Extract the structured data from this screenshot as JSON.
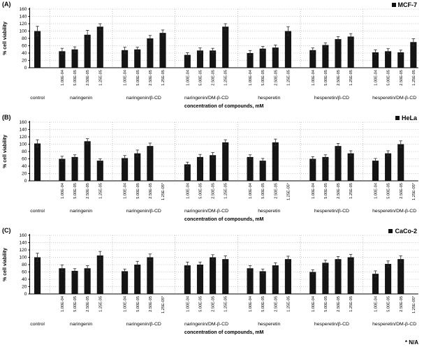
{
  "page": {
    "footnote": "* N/A"
  },
  "chart_data": [
    {
      "type": "bar",
      "panel": "(A)",
      "legend": "MCF-7",
      "title": "",
      "ylabel": "% cell viability",
      "xlabel": "concentration of compounds, mM",
      "ylim": [
        0,
        160
      ],
      "ytick_step": 20,
      "grid": true,
      "legend_position": "top-right",
      "groups": [
        {
          "label": "control",
          "bars": [
            {
              "tick": "",
              "value": 100,
              "error": 13
            }
          ]
        },
        {
          "label": "naringenin",
          "bars": [
            {
              "tick": "1.00E-04",
              "value": 45,
              "error": 8
            },
            {
              "tick": "5.00E-05",
              "value": 50,
              "error": 7
            },
            {
              "tick": "2.50E-05",
              "value": 90,
              "error": 12
            },
            {
              "tick": "1.25E-05",
              "value": 112,
              "error": 8
            }
          ]
        },
        {
          "label": "naringenin/β-CD",
          "bars": [
            {
              "tick": "1.00E-04",
              "value": 48,
              "error": 8
            },
            {
              "tick": "5.00E-05",
              "value": 50,
              "error": 6
            },
            {
              "tick": "2.50E-05",
              "value": 80,
              "error": 8
            },
            {
              "tick": "1.25E-05",
              "value": 95,
              "error": 8
            }
          ]
        },
        {
          "label": "naringenin/DM-β-CD",
          "bars": [
            {
              "tick": "1.00E-04",
              "value": 35,
              "error": 6
            },
            {
              "tick": "5.00E-05",
              "value": 47,
              "error": 7
            },
            {
              "tick": "2.50E-05",
              "value": 47,
              "error": 6
            },
            {
              "tick": "1.25E-05",
              "value": 112,
              "error": 8
            }
          ]
        },
        {
          "label": "hesperetin",
          "bars": [
            {
              "tick": "1.00E-04",
              "value": 40,
              "error": 7
            },
            {
              "tick": "5.00E-05",
              "value": 52,
              "error": 6
            },
            {
              "tick": "2.50E-05",
              "value": 55,
              "error": 7
            },
            {
              "tick": "1.25E-05",
              "value": 100,
              "error": 12
            }
          ]
        },
        {
          "label": "hesperetin/β-CD",
          "bars": [
            {
              "tick": "1.00E-04",
              "value": 48,
              "error": 6
            },
            {
              "tick": "5.00E-05",
              "value": 62,
              "error": 6
            },
            {
              "tick": "2.50E-05",
              "value": 78,
              "error": 7
            },
            {
              "tick": "1.25E-05",
              "value": 85,
              "error": 8
            }
          ]
        },
        {
          "label": "hesperetin/DM-β-CD",
          "bars": [
            {
              "tick": "1.00E-04",
              "value": 42,
              "error": 7
            },
            {
              "tick": "5.00E-05",
              "value": 45,
              "error": 7
            },
            {
              "tick": "2.50E-05",
              "value": 42,
              "error": 6
            },
            {
              "tick": "1.25E-05",
              "value": 70,
              "error": 9
            }
          ]
        }
      ]
    },
    {
      "type": "bar",
      "panel": "(B)",
      "legend": "HeLa",
      "title": "",
      "ylabel": "% cell viability",
      "xlabel": "concentration of compounds, mM",
      "ylim": [
        0,
        160
      ],
      "ytick_step": 20,
      "grid": true,
      "legend_position": "top-right",
      "groups": [
        {
          "label": "control",
          "bars": [
            {
              "tick": "",
              "value": 102,
              "error": 10
            }
          ]
        },
        {
          "label": "naringenin",
          "bars": [
            {
              "tick": "1.00E-04",
              "value": 60,
              "error": 7
            },
            {
              "tick": "5.00E-05",
              "value": 65,
              "error": 6
            },
            {
              "tick": "2.50E-05",
              "value": 108,
              "error": 7
            },
            {
              "tick": "1.25E-05",
              "value": 55,
              "error": 5
            }
          ]
        },
        {
          "label": "naringenin/β-CD",
          "bars": [
            {
              "tick": "1.00E-04",
              "value": 62,
              "error": 7
            },
            {
              "tick": "5.00E-05",
              "value": 75,
              "error": 9
            },
            {
              "tick": "2.50E-05",
              "value": 95,
              "error": 8
            },
            {
              "tick": "1.25E-05*",
              "value": null,
              "error": null
            }
          ]
        },
        {
          "label": "naringenin/DM-β-CD",
          "bars": [
            {
              "tick": "1.00E-04",
              "value": 45,
              "error": 6
            },
            {
              "tick": "5.00E-05",
              "value": 65,
              "error": 7
            },
            {
              "tick": "2.50E-05",
              "value": 70,
              "error": 7
            },
            {
              "tick": "1.25E-05",
              "value": 105,
              "error": 7
            }
          ]
        },
        {
          "label": "hesperetin",
          "bars": [
            {
              "tick": "1.00E-04",
              "value": 65,
              "error": 6
            },
            {
              "tick": "5.00E-05",
              "value": 55,
              "error": 6
            },
            {
              "tick": "2.50E-05",
              "value": 105,
              "error": 9
            },
            {
              "tick": "1.25E-05*",
              "value": null,
              "error": null
            }
          ]
        },
        {
          "label": "hesperetin/β-CD",
          "bars": [
            {
              "tick": "1.00E-04",
              "value": 60,
              "error": 6
            },
            {
              "tick": "5.00E-05",
              "value": 65,
              "error": 6
            },
            {
              "tick": "2.50E-05",
              "value": 95,
              "error": 7
            },
            {
              "tick": "1.25E-05",
              "value": 75,
              "error": 7
            }
          ]
        },
        {
          "label": "hesperetin/DM-β-CD",
          "bars": [
            {
              "tick": "1.00E-04",
              "value": 55,
              "error": 6
            },
            {
              "tick": "5.00E-05",
              "value": 75,
              "error": 7
            },
            {
              "tick": "2.50E-05",
              "value": 100,
              "error": 9
            },
            {
              "tick": "1.25E-05*",
              "value": null,
              "error": null
            }
          ]
        }
      ]
    },
    {
      "type": "bar",
      "panel": "(C)",
      "legend": "CaCo-2",
      "title": "",
      "ylabel": "% cell viability",
      "xlabel": "concentration of compounds, mM",
      "ylim": [
        0,
        160
      ],
      "ytick_step": 20,
      "grid": true,
      "legend_position": "top-right",
      "groups": [
        {
          "label": "control",
          "bars": [
            {
              "tick": "",
              "value": 100,
              "error": 11
            }
          ]
        },
        {
          "label": "naringenin",
          "bars": [
            {
              "tick": "1.00E-04",
              "value": 70,
              "error": 9
            },
            {
              "tick": "5.00E-05",
              "value": 63,
              "error": 6
            },
            {
              "tick": "2.50E-05",
              "value": 70,
              "error": 7
            },
            {
              "tick": "1.25E-05",
              "value": 105,
              "error": 11
            }
          ]
        },
        {
          "label": "naringenin/β-CD",
          "bars": [
            {
              "tick": "1.00E-04",
              "value": 62,
              "error": 6
            },
            {
              "tick": "5.00E-05",
              "value": 80,
              "error": 9
            },
            {
              "tick": "2.50E-05",
              "value": 100,
              "error": 9
            },
            {
              "tick": "1.25E-05*",
              "value": null,
              "error": null
            }
          ]
        },
        {
          "label": "naringenin/DM-β-CD",
          "bars": [
            {
              "tick": "1.00E-04",
              "value": 78,
              "error": 9
            },
            {
              "tick": "5.00E-05",
              "value": 80,
              "error": 7
            },
            {
              "tick": "2.50E-05",
              "value": 100,
              "error": 7
            },
            {
              "tick": "1.25E-05",
              "value": 95,
              "error": 9
            }
          ]
        },
        {
          "label": "hesperetin",
          "bars": [
            {
              "tick": "1.00E-04",
              "value": 70,
              "error": 7
            },
            {
              "tick": "5.00E-05",
              "value": 62,
              "error": 6
            },
            {
              "tick": "2.50E-05",
              "value": 78,
              "error": 7
            },
            {
              "tick": "1.25E-05",
              "value": 95,
              "error": 8
            }
          ]
        },
        {
          "label": "hesperetin/β-CD",
          "bars": [
            {
              "tick": "1.00E-04",
              "value": 60,
              "error": 6
            },
            {
              "tick": "5.00E-05",
              "value": 85,
              "error": 7
            },
            {
              "tick": "2.50E-05",
              "value": 95,
              "error": 7
            },
            {
              "tick": "1.25E-05",
              "value": 100,
              "error": 8
            }
          ]
        },
        {
          "label": "hesperetin/DM-β-CD",
          "bars": [
            {
              "tick": "1.00E-04",
              "value": 55,
              "error": 8
            },
            {
              "tick": "5.00E-05",
              "value": 82,
              "error": 8
            },
            {
              "tick": "2.50E-05",
              "value": 95,
              "error": 9
            },
            {
              "tick": "1.25E-05*",
              "value": null,
              "error": null
            }
          ]
        }
      ]
    }
  ]
}
